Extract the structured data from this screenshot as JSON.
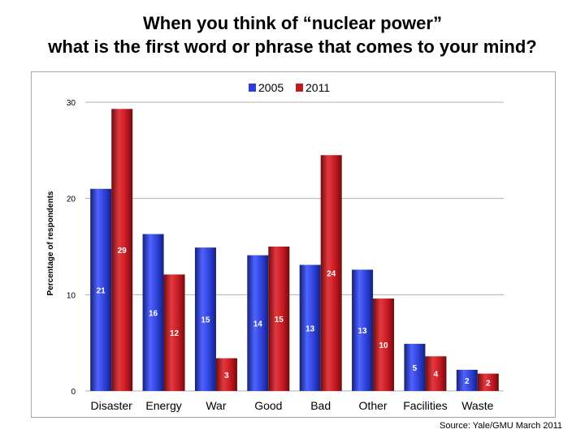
{
  "title_line1": "When you think of “nuclear power”",
  "title_line2": "what is the first word or phrase that comes to your mind?",
  "source": "Source: Yale/GMU March 2011",
  "colors": {
    "series_2005": "#2b3fd6",
    "series_2011": "#c4191f",
    "grid": "#b0b0b0"
  },
  "chart_data": {
    "type": "bar",
    "title": "When you think of “nuclear power” what is the first word or phrase that comes to your mind?",
    "xlabel": "",
    "ylabel": "Percentage of respondents",
    "ylim": [
      0,
      30
    ],
    "yticks": [
      0,
      10,
      20,
      30
    ],
    "legend_position": "top-center",
    "categories": [
      "Disaster",
      "Energy",
      "War",
      "Good",
      "Bad",
      "Other",
      "Facilities",
      "Waste"
    ],
    "series": [
      {
        "name": "2005",
        "values": [
          21,
          16,
          15,
          14,
          13,
          13,
          5,
          2
        ],
        "heights": [
          21,
          16.3,
          14.9,
          14.1,
          13.1,
          12.6,
          4.9,
          2.2
        ]
      },
      {
        "name": "2011",
        "values": [
          29,
          12,
          3,
          15,
          24,
          10,
          4,
          2
        ],
        "heights": [
          29.3,
          12.1,
          3.4,
          15.0,
          24.5,
          9.6,
          3.6,
          1.8
        ]
      }
    ]
  }
}
